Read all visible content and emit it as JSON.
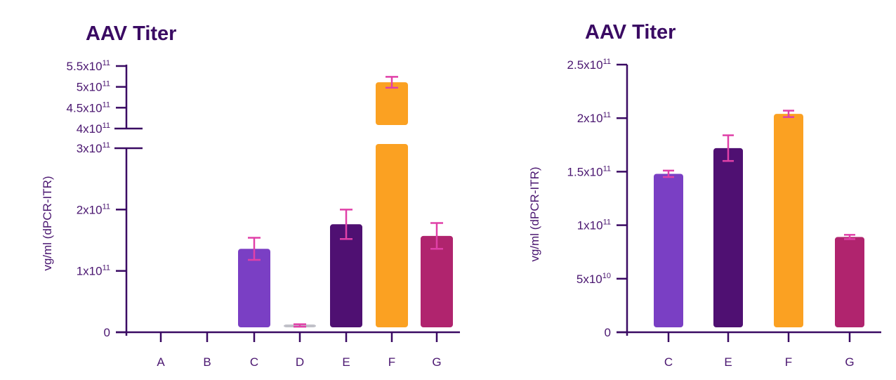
{
  "chart_data": [
    {
      "type": "bar",
      "title": "AAV Titer",
      "ylabel": "vg/ml (dPCR-ITR)",
      "xlabel": "",
      "broken_axis": true,
      "lower_ylim": [
        0,
        300000000000
      ],
      "upper_ylim": [
        400000000000,
        550000000000
      ],
      "ytick_labels": [
        {
          "value": 0,
          "base": "0",
          "exp": ""
        },
        {
          "value": 100000000000,
          "base": "1x10",
          "exp": "11"
        },
        {
          "value": 200000000000,
          "base": "2x10",
          "exp": "11"
        },
        {
          "value": 300000000000,
          "base": "3x10",
          "exp": "11"
        },
        {
          "value": 400000000000,
          "base": "4x10",
          "exp": "11"
        },
        {
          "value": 450000000000,
          "base": "4.5x10",
          "exp": "11"
        },
        {
          "value": 500000000000,
          "base": "5x10",
          "exp": "11"
        },
        {
          "value": 550000000000,
          "base": "5.5x10",
          "exp": "11"
        }
      ],
      "categories": [
        "A",
        "B",
        "C",
        "D",
        "E",
        "F",
        "G"
      ],
      "values": [
        0,
        0,
        136000000000,
        11000000000,
        176000000000,
        511000000000,
        157000000000
      ],
      "errors": [
        0,
        0,
        18000000000,
        2000000000,
        24000000000,
        13000000000,
        21000000000
      ],
      "colors": [
        "#7a3fc4",
        "#7a3fc4",
        "#7a3fc4",
        "#c0c0c8",
        "#4f1072",
        "#fba122",
        "#b0246e"
      ]
    },
    {
      "type": "bar",
      "title": "AAV Titer",
      "ylabel": "vg/ml (dPCR-ITR)",
      "xlabel": "",
      "ylim": [
        0,
        250000000000
      ],
      "ytick_labels": [
        {
          "value": 0,
          "base": "0",
          "exp": ""
        },
        {
          "value": 50000000000,
          "base": "5x10",
          "exp": "10"
        },
        {
          "value": 100000000000,
          "base": "1x10",
          "exp": "11"
        },
        {
          "value": 150000000000,
          "base": "1.5x10",
          "exp": "11"
        },
        {
          "value": 200000000000,
          "base": "2x10",
          "exp": "11"
        },
        {
          "value": 250000000000,
          "base": "2.5x10",
          "exp": "11"
        }
      ],
      "categories": [
        "C",
        "E",
        "F",
        "G"
      ],
      "values": [
        148000000000,
        172000000000,
        204000000000,
        89000000000
      ],
      "errors": [
        3000000000,
        12000000000,
        3000000000,
        2000000000
      ],
      "colors": [
        "#7a3fc4",
        "#4f1072",
        "#fba122",
        "#b0246e"
      ]
    }
  ]
}
